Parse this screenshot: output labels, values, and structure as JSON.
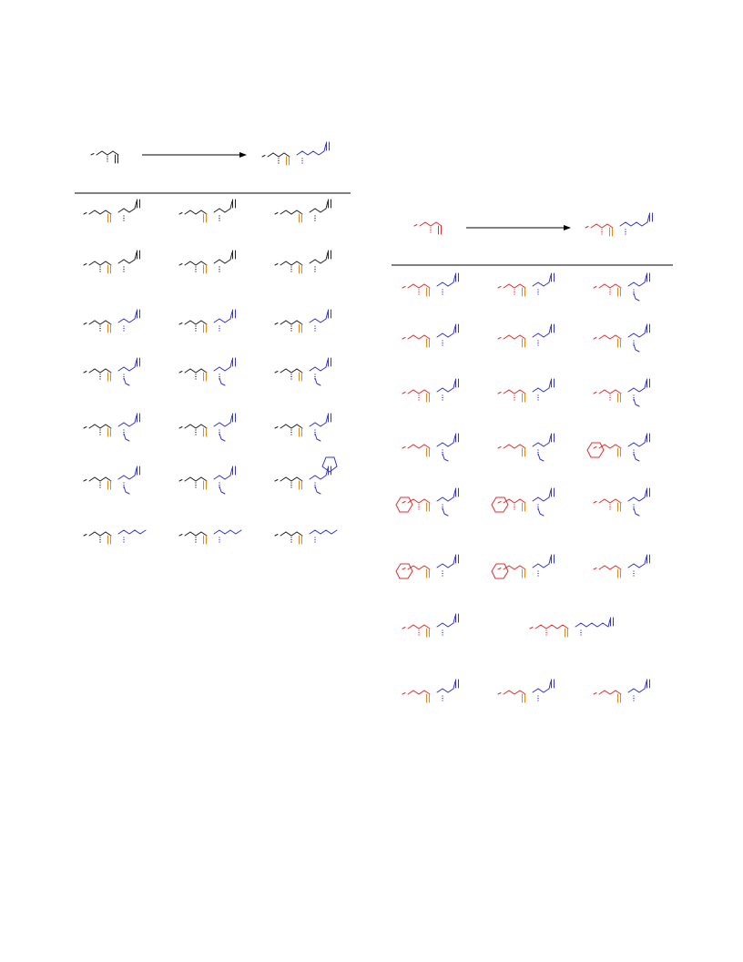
{
  "colors": {
    "background": "#ffffff",
    "default_structure": "#222222",
    "carbonyl_highlight": "#e8891a",
    "acyl_fragment": "#e03030",
    "amine_fragment": "#3535d0",
    "arrow": "#000000",
    "rule": "#000000"
  },
  "schemes": [
    {
      "id": "left-scheme",
      "reactant_color": "default_structure",
      "product_left_color": "default_structure",
      "product_right_color": "amine_fragment",
      "table_rows": 7,
      "table_cols": 3
    },
    {
      "id": "right-scheme",
      "reactant_color": "acyl_fragment",
      "product_left_color": "acyl_fragment",
      "product_right_color": "amine_fragment",
      "table_rows": 8,
      "table_cols": 3
    }
  ]
}
